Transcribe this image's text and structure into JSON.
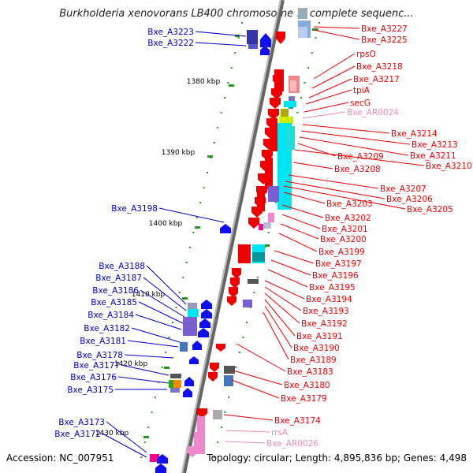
{
  "title": "Burkholderia xenovorans LB400 chromosome 1, complete sequenc...",
  "footer": {
    "accession": "Accession: NC_007951",
    "summary": "Topology: circular; Length: 4,895,836 bp; Genes: 4,498"
  },
  "colors": {
    "axis": "#888888",
    "left_label": "#0000cc",
    "right_label": "#ee0000",
    "rna_label": "#ee88bb",
    "tick": "#229922",
    "kbp_text": "#000000"
  },
  "scale_labels": [
    "1380 kbp",
    "1390 kbp",
    "1400 kbp",
    "1410 kbp",
    "1420 kbp",
    "1430 kbp"
  ],
  "left_genes": [
    "Bxe_A3223",
    "Bxe_A3222",
    "Bxe_A3198",
    "Bxe_A3188",
    "Bxe_A3187",
    "Bxe_A3186",
    "Bxe_A3185",
    "Bxe_A3184",
    "Bxe_A3182",
    "Bxe_A3181",
    "Bxe_A3178",
    "Bxe_A3177",
    "Bxe_A3176",
    "Bxe_A3175",
    "Bxe_A3173",
    "Bxe_A3172"
  ],
  "right_genes": [
    {
      "label": "Bxe_A3227",
      "kind": "gene"
    },
    {
      "label": "Bxe_A3225",
      "kind": "gene"
    },
    {
      "label": "rpsO",
      "kind": "gene"
    },
    {
      "label": "Bxe_A3218",
      "kind": "gene"
    },
    {
      "label": "Bxe_A3217",
      "kind": "gene"
    },
    {
      "label": "tpiA",
      "kind": "gene"
    },
    {
      "label": "secG",
      "kind": "gene"
    },
    {
      "label": "Bxe_AR0024",
      "kind": "rna"
    },
    {
      "label": "Bxe_A3214",
      "kind": "gene"
    },
    {
      "label": "Bxe_A3213",
      "kind": "gene"
    },
    {
      "label": "Bxe_A3211",
      "kind": "gene"
    },
    {
      "label": "Bxe_A3209",
      "kind": "gene"
    },
    {
      "label": "Bxe_A3210",
      "kind": "gene"
    },
    {
      "label": "Bxe_A3208",
      "kind": "gene"
    },
    {
      "label": "Bxe_A3207",
      "kind": "gene"
    },
    {
      "label": "Bxe_A3206",
      "kind": "gene"
    },
    {
      "label": "Bxe_A3205",
      "kind": "gene"
    },
    {
      "label": "Bxe_A3203",
      "kind": "gene"
    },
    {
      "label": "Bxe_A3202",
      "kind": "gene"
    },
    {
      "label": "Bxe_A3201",
      "kind": "gene"
    },
    {
      "label": "Bxe_A3200",
      "kind": "gene"
    },
    {
      "label": "Bxe_A3199",
      "kind": "gene"
    },
    {
      "label": "Bxe_A3197",
      "kind": "gene"
    },
    {
      "label": "Bxe_A3196",
      "kind": "gene"
    },
    {
      "label": "Bxe_A3195",
      "kind": "gene"
    },
    {
      "label": "Bxe_A3194",
      "kind": "gene"
    },
    {
      "label": "Bxe_A3193",
      "kind": "gene"
    },
    {
      "label": "Bxe_A3192",
      "kind": "gene"
    },
    {
      "label": "Bxe_A3191",
      "kind": "gene"
    },
    {
      "label": "Bxe_A3190",
      "kind": "gene"
    },
    {
      "label": "Bxe_A3189",
      "kind": "gene"
    },
    {
      "label": "Bxe_A3183",
      "kind": "gene"
    },
    {
      "label": "Bxe_A3180",
      "kind": "gene"
    },
    {
      "label": "Bxe_A3179",
      "kind": "gene"
    },
    {
      "label": "Bxe_A3174",
      "kind": "gene"
    },
    {
      "label": "rrsA",
      "kind": "rna"
    },
    {
      "label": "Bxe_AR0026",
      "kind": "rna"
    }
  ]
}
